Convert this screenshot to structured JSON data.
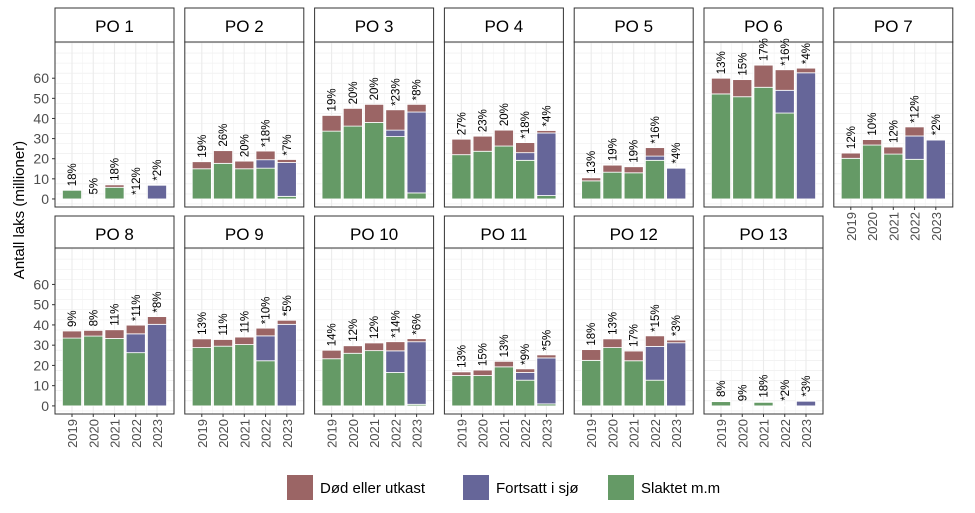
{
  "chart_data": {
    "type": "bar",
    "stacked": true,
    "facet_layout": "2 rows x 7 columns",
    "ylabel": "Antall laks (millioner)",
    "xlabel": "",
    "ylim": [
      -4,
      78
    ],
    "yticks": [
      0,
      10,
      20,
      30,
      40,
      50,
      60
    ],
    "grid": true,
    "legend_position": "bottom",
    "categories": [
      "2019",
      "2020",
      "2021",
      "2022",
      "2023"
    ],
    "series_order": [
      "Slaktet m.m",
      "Fortsatt i sjø",
      "Død eller utkast"
    ],
    "legend": [
      {
        "name": "Død eller utkast",
        "color": "#9b6565"
      },
      {
        "name": "Fortsatt i sjø",
        "color": "#666699"
      },
      {
        "name": "Slaktet m.m",
        "color": "#659a66"
      }
    ],
    "panels": [
      {
        "title": "PO 1",
        "slaktet": [
          4.3,
          0.2,
          5.8,
          0.1,
          0
        ],
        "fortsatt": [
          0,
          0,
          0,
          0,
          7.0
        ],
        "dod": [
          0,
          0,
          1.2,
          0,
          0.1
        ],
        "labels": [
          "18%",
          "5%",
          "18%",
          "*12%",
          "*2%"
        ]
      },
      {
        "title": "PO 2",
        "slaktet": [
          15.0,
          17.7,
          15.0,
          15.3,
          1.3
        ],
        "fortsatt": [
          0,
          0,
          0,
          4.2,
          16.8
        ],
        "dod": [
          3.5,
          6.3,
          3.8,
          4.3,
          1.5
        ],
        "labels": [
          "19%",
          "26%",
          "20%",
          "*18%",
          "*7%"
        ]
      },
      {
        "title": "PO 3",
        "slaktet": [
          33.7,
          36.2,
          38.0,
          31.0,
          3.0
        ],
        "fortsatt": [
          0,
          0,
          0,
          3.2,
          40.2
        ],
        "dod": [
          7.8,
          8.8,
          9.0,
          10.1,
          3.8
        ],
        "labels": [
          "19%",
          "20%",
          "20%",
          "*23%",
          "*8%"
        ]
      },
      {
        "title": "PO 4",
        "slaktet": [
          22.0,
          23.7,
          26.3,
          19.2,
          1.7
        ],
        "fortsatt": [
          0,
          0,
          0,
          3.8,
          31.1
        ],
        "dod": [
          7.7,
          7.5,
          7.9,
          5.0,
          1.2
        ],
        "labels": [
          "27%",
          "23%",
          "20%",
          "*18%",
          "*4%"
        ]
      },
      {
        "title": "PO 5",
        "slaktet": [
          9.0,
          13.3,
          13.0,
          19.2,
          0
        ],
        "fortsatt": [
          0,
          0,
          0,
          2.1,
          15.3
        ],
        "dod": [
          1.5,
          3.5,
          3.0,
          4.2,
          0.3
        ],
        "labels": [
          "13%",
          "19%",
          "19%",
          "*16%",
          "*4%"
        ]
      },
      {
        "title": "PO 6",
        "slaktet": [
          52.2,
          50.8,
          55.5,
          42.7,
          0
        ],
        "fortsatt": [
          0,
          0,
          0,
          11.3,
          62.7
        ],
        "dod": [
          7.8,
          8.5,
          11.0,
          10.2,
          2.3
        ],
        "labels": [
          "13%",
          "15%",
          "17%",
          "*16%",
          "*4%"
        ]
      },
      {
        "title": "PO 7",
        "slaktet": [
          20.2,
          26.8,
          22.3,
          19.7,
          0
        ],
        "fortsatt": [
          0,
          0,
          0,
          11.6,
          29.3
        ],
        "dod": [
          2.6,
          2.7,
          3.5,
          4.5,
          0.4
        ],
        "labels": [
          "12%",
          "10%",
          "12%",
          "*12%",
          "*2%"
        ]
      },
      {
        "title": "PO 8",
        "slaktet": [
          33.5,
          34.5,
          33.3,
          26.3,
          0
        ],
        "fortsatt": [
          0,
          0,
          0,
          9.3,
          40.3
        ],
        "dod": [
          3.5,
          2.8,
          4.3,
          4.3,
          3.8
        ],
        "labels": [
          "9%",
          "8%",
          "11%",
          "*11%",
          "*8%"
        ]
      },
      {
        "title": "PO 9",
        "slaktet": [
          28.8,
          29.5,
          30.3,
          22.3,
          0
        ],
        "fortsatt": [
          0,
          0,
          0,
          12.3,
          40.3
        ],
        "dod": [
          4.3,
          3.3,
          3.7,
          3.8,
          2.0
        ],
        "labels": [
          "13%",
          "11%",
          "11%",
          "*10%",
          "*5%"
        ]
      },
      {
        "title": "PO 10",
        "slaktet": [
          23.3,
          26.0,
          27.3,
          16.5,
          0.8
        ],
        "fortsatt": [
          0,
          0,
          0,
          10.7,
          30.9
        ],
        "dod": [
          4.2,
          3.7,
          3.8,
          4.5,
          1.5
        ],
        "labels": [
          "14%",
          "12%",
          "12%",
          "*14%",
          "*6%"
        ]
      },
      {
        "title": "PO 11",
        "slaktet": [
          15.0,
          15.0,
          19.3,
          12.7,
          1.0
        ],
        "fortsatt": [
          0,
          0,
          0,
          3.8,
          22.7
        ],
        "dod": [
          1.8,
          2.7,
          2.7,
          1.8,
          1.5
        ],
        "labels": [
          "13%",
          "15%",
          "13%",
          "*9%",
          "*5%"
        ]
      },
      {
        "title": "PO 12",
        "slaktet": [
          22.5,
          28.8,
          22.3,
          12.7,
          0
        ],
        "fortsatt": [
          0,
          0,
          0,
          16.7,
          31.2
        ],
        "dod": [
          5.3,
          4.3,
          4.8,
          5.2,
          1.3
        ],
        "labels": [
          "18%",
          "13%",
          "17%",
          "*15%",
          "*3%"
        ]
      },
      {
        "title": "PO 13",
        "slaktet": [
          2.2,
          0.3,
          1.8,
          0.5,
          0
        ],
        "fortsatt": [
          0,
          0,
          0,
          0,
          2.5
        ],
        "dod": [
          0.2,
          0.05,
          0.3,
          0.05,
          0.1
        ],
        "labels": [
          "8%",
          "9%",
          "18%",
          "*2%",
          "*3%"
        ]
      }
    ]
  }
}
